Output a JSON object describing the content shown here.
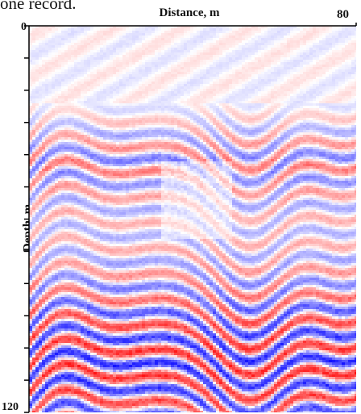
{
  "caption": "one record.",
  "chart_data": {
    "type": "heatmap",
    "title": "Distance, m",
    "xlabel": "Distance, m",
    "ylabel": "Depth, m",
    "xlim": [
      0,
      80
    ],
    "ylim": [
      0,
      120
    ],
    "x_tick_labels": [
      "",
      "80"
    ],
    "y_tick_labels": [
      "0",
      "120"
    ],
    "y_ticks": [
      0,
      10,
      20,
      30,
      40,
      50,
      60,
      70,
      80,
      90,
      100,
      110,
      120
    ],
    "colormap": {
      "negative": "#0000ff",
      "zero": "#ffffff",
      "positive": "#ff0000"
    },
    "grid": false
  }
}
